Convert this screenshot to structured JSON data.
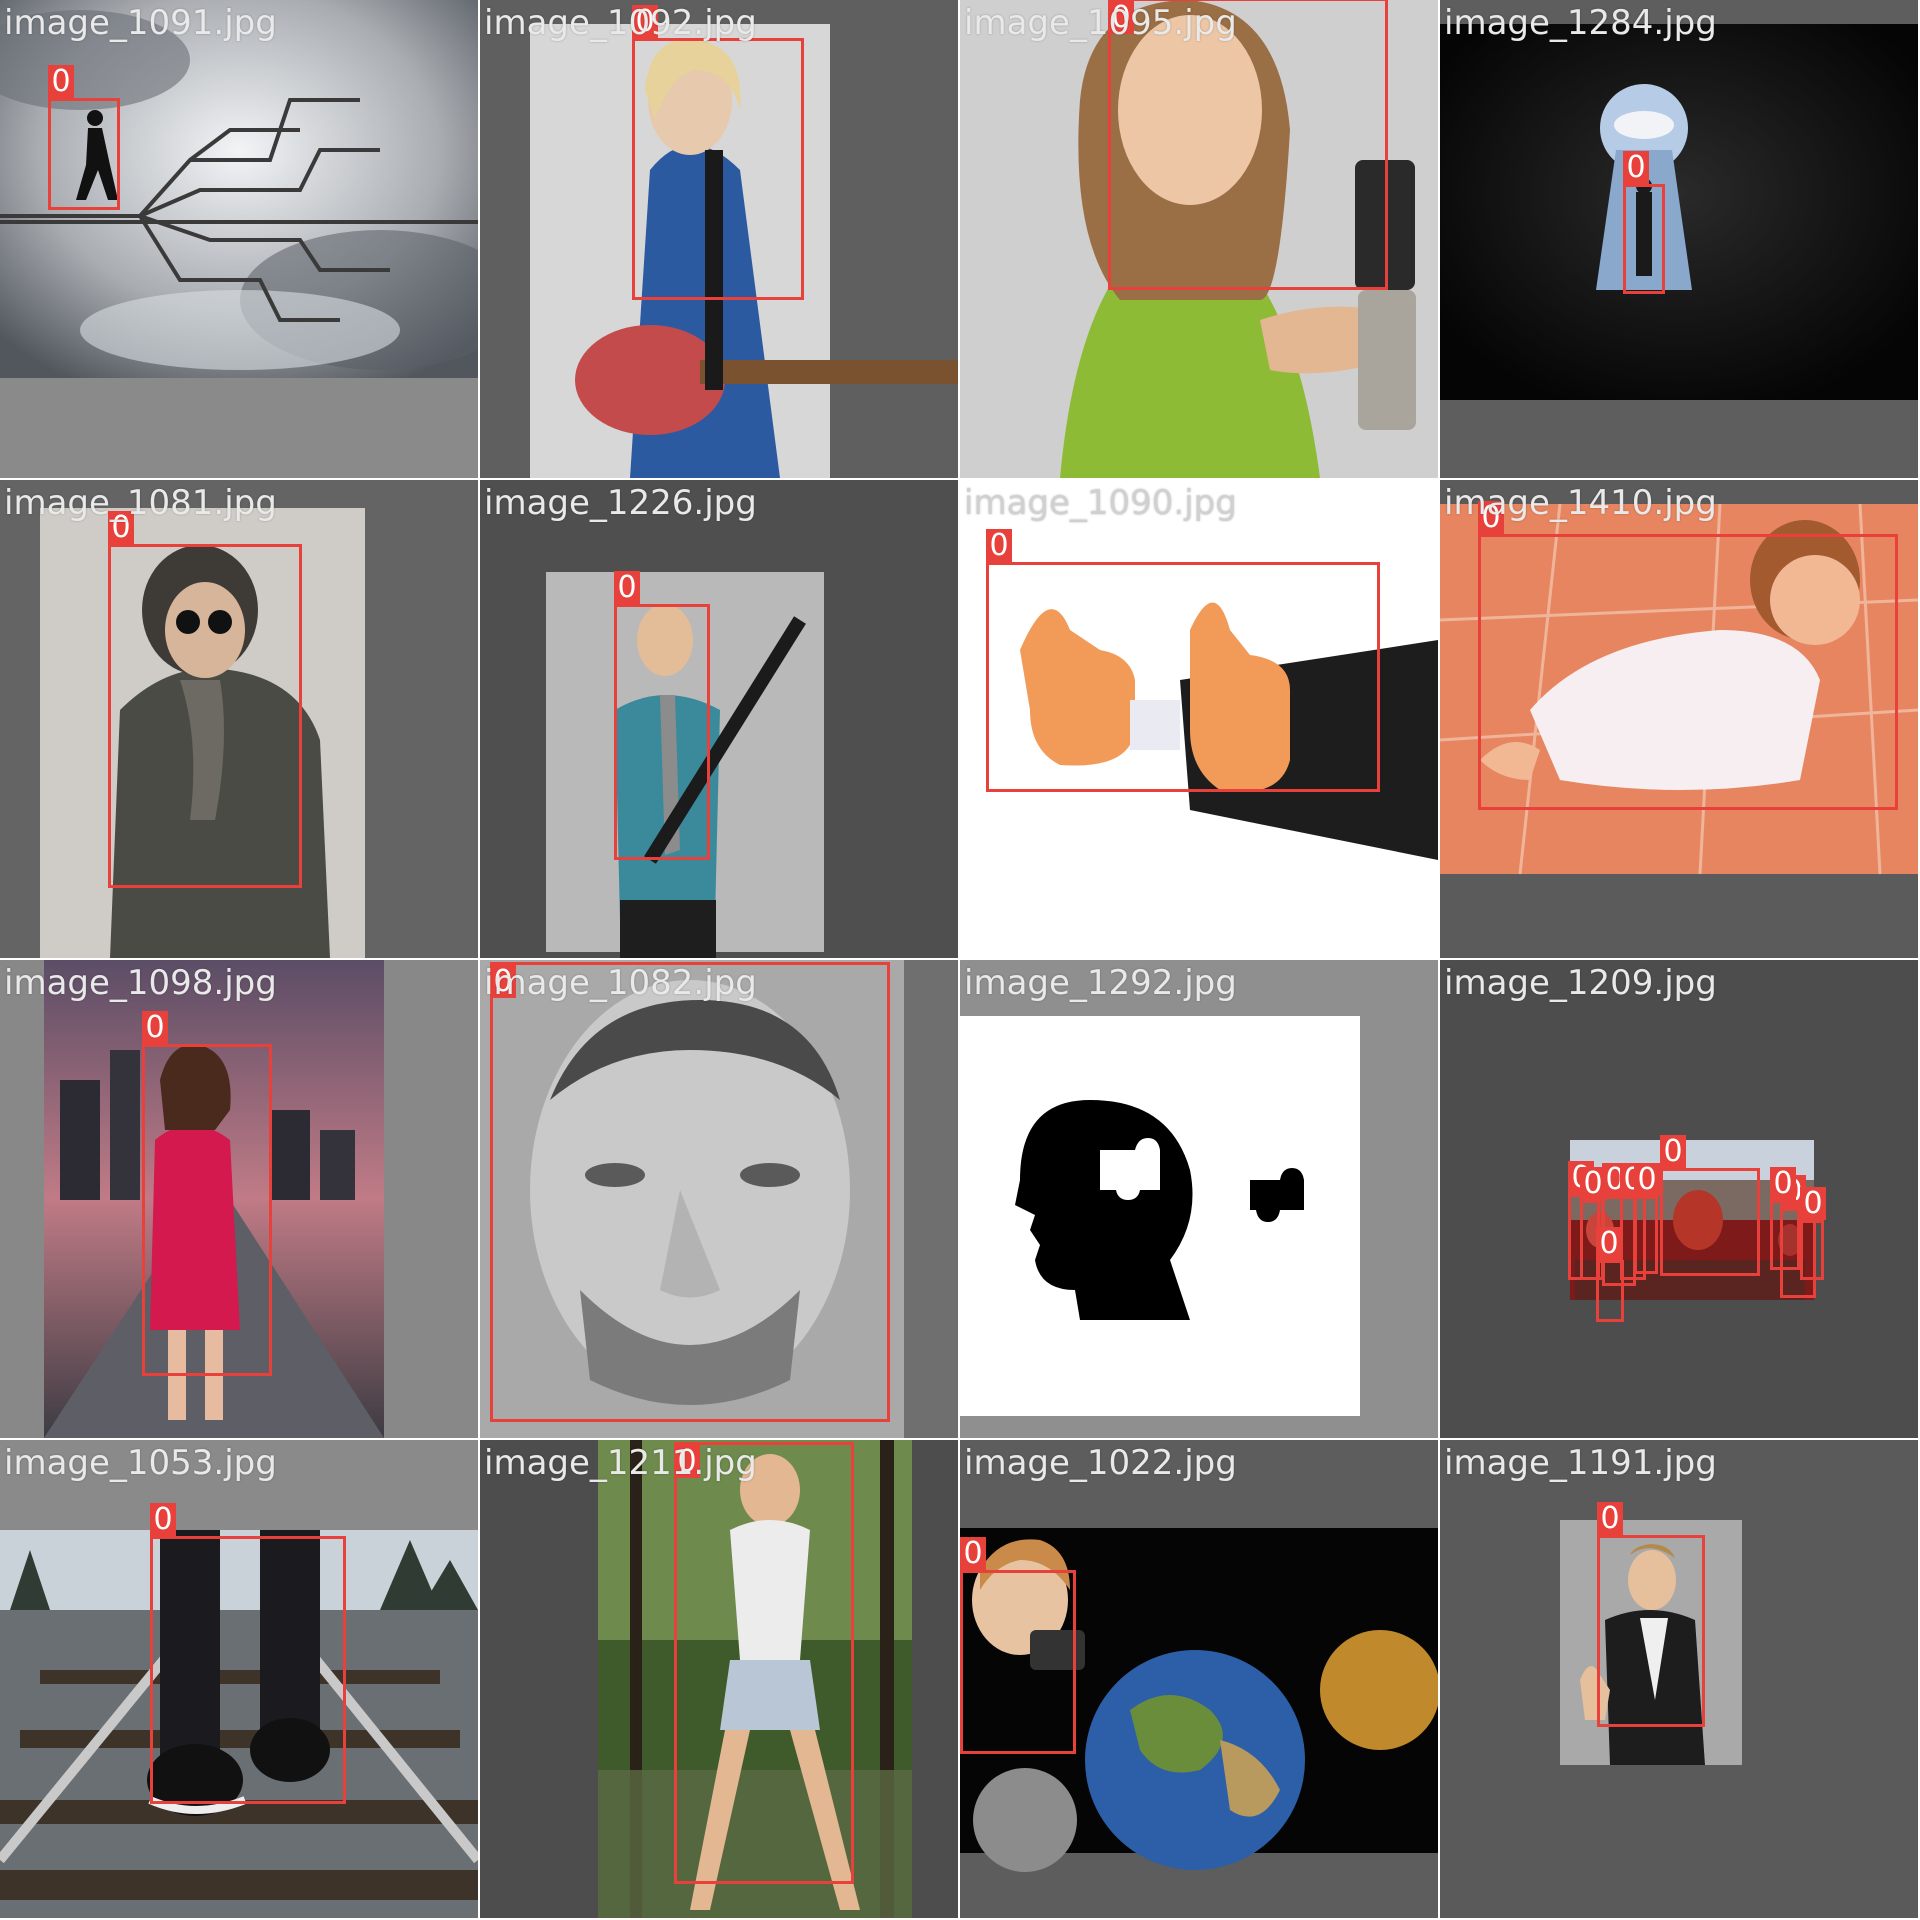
{
  "mosaic": {
    "box_color": "#e8413c",
    "tiles": [
      {
        "filename": "image_1091.jpg",
        "scene": "clouds-maze",
        "detections": [
          {
            "label": "0"
          }
        ]
      },
      {
        "filename": "image_1092.jpg",
        "scene": "guitar-woman",
        "detections": [
          {
            "label": "0"
          }
        ]
      },
      {
        "filename": "image_1095.jpg",
        "scene": "girl-phone",
        "detections": [
          {
            "label": "0"
          }
        ]
      },
      {
        "filename": "image_1284.jpg",
        "scene": "keyhole",
        "detections": [
          {
            "label": "0"
          }
        ]
      },
      {
        "filename": "image_1081.jpg",
        "scene": "winter-coat",
        "detections": [
          {
            "label": "0"
          }
        ]
      },
      {
        "filename": "image_1226.jpg",
        "scene": "man-rifle",
        "detections": [
          {
            "label": "0"
          }
        ]
      },
      {
        "filename": "image_1090.jpg",
        "scene": "thumbs-up",
        "detections": [
          {
            "label": "0"
          }
        ]
      },
      {
        "filename": "image_1410.jpg",
        "scene": "baby-crawl",
        "detections": [
          {
            "label": "0"
          }
        ]
      },
      {
        "filename": "image_1098.jpg",
        "scene": "woman-road",
        "detections": [
          {
            "label": "0"
          }
        ]
      },
      {
        "filename": "image_1082.jpg",
        "scene": "face-portrait",
        "detections": [
          {
            "label": "0"
          }
        ]
      },
      {
        "filename": "image_1292.jpg",
        "scene": "head-puzzle",
        "detections": []
      },
      {
        "filename": "image_1209.jpg",
        "scene": "crowd-festival",
        "detections": [
          {
            "label": "0"
          },
          {
            "label": "0"
          },
          {
            "label": "0"
          },
          {
            "label": "0"
          },
          {
            "label": "0"
          },
          {
            "label": "0"
          },
          {
            "label": "0"
          },
          {
            "label": "0"
          },
          {
            "label": "0"
          },
          {
            "label": "0"
          }
        ]
      },
      {
        "filename": "image_1053.jpg",
        "scene": "sneakers-tracks",
        "detections": [
          {
            "label": "0"
          }
        ]
      },
      {
        "filename": "image_1211.jpg",
        "scene": "woman-forest",
        "detections": [
          {
            "label": "0"
          }
        ]
      },
      {
        "filename": "image_1022.jpg",
        "scene": "boy-planets",
        "detections": [
          {
            "label": "0"
          }
        ]
      },
      {
        "filename": "image_1191.jpg",
        "scene": "man-thumbs",
        "detections": [
          {
            "label": "0"
          }
        ]
      }
    ]
  }
}
